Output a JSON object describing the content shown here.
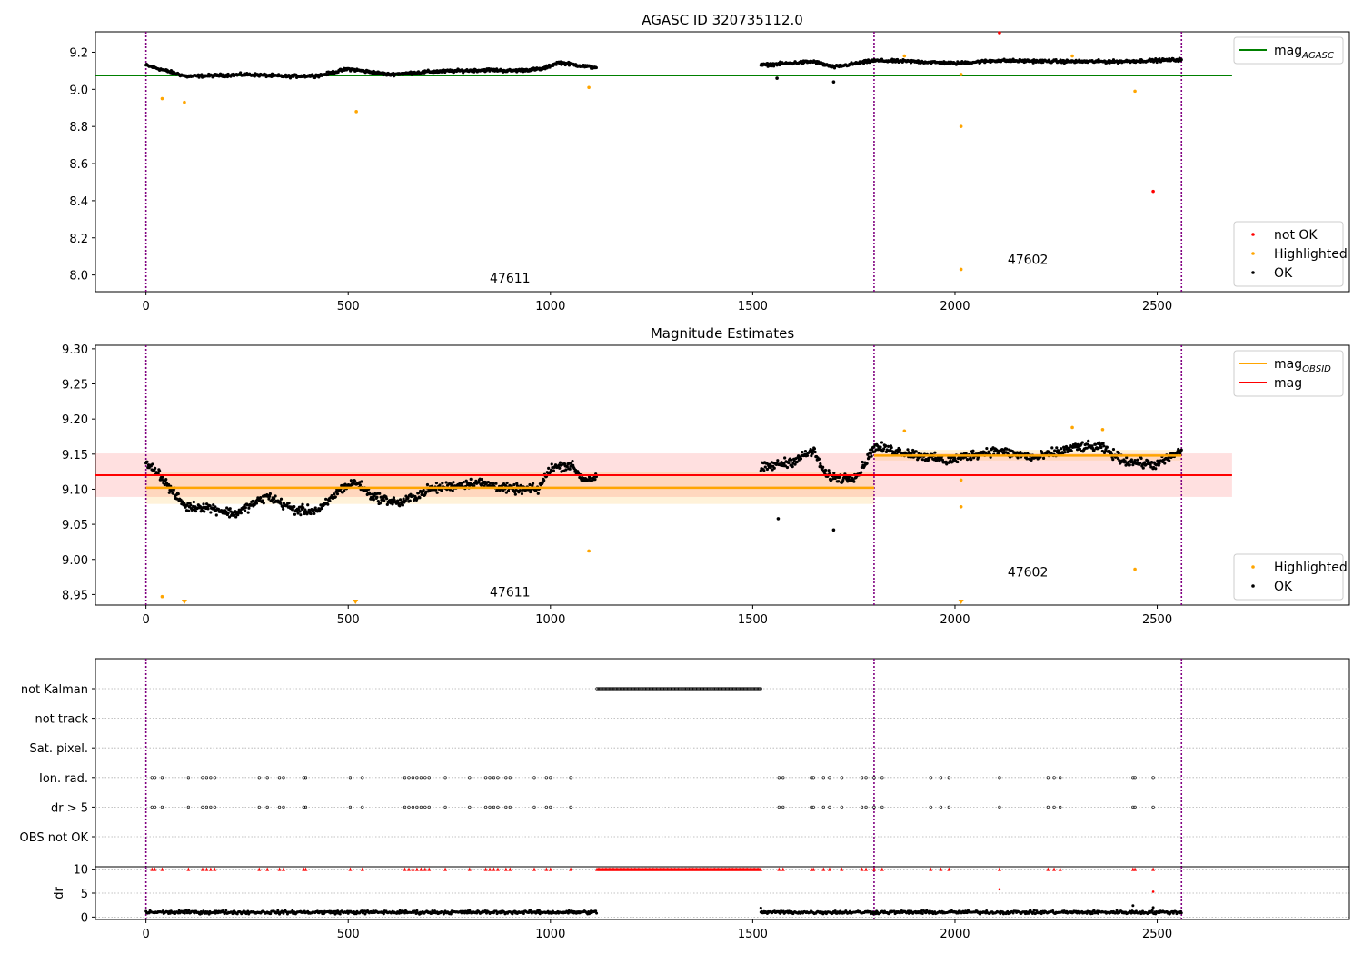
{
  "colors": {
    "ok": "#000000",
    "highlighted": "#ffa500",
    "not_ok": "#ff0000",
    "agasc_line": "#008000",
    "obsid_line": "#ffa500",
    "mag_line": "#ff0000",
    "obs_boundary": "#800080",
    "grid": "#b0b0b0"
  },
  "chart_data": [
    {
      "type": "scatter",
      "title": "AGASC ID 320735112.0",
      "xlabel": "",
      "ylabel": "",
      "xlim": [
        -125,
        2975
      ],
      "ylim": [
        7.91,
        9.31
      ],
      "x_ticks": [
        0,
        500,
        1000,
        1500,
        2000,
        2500
      ],
      "y_ticks": [
        8.0,
        8.2,
        8.4,
        8.6,
        8.8,
        9.0,
        9.2
      ],
      "grid": false,
      "obs_boundaries": [
        0,
        1800,
        2560
      ],
      "obsid_labels": [
        {
          "text": "47611",
          "x": 900,
          "y": 7.96
        },
        {
          "text": "47602",
          "x": 2180,
          "y": 8.06
        }
      ],
      "reference_lines": [
        {
          "name": "mag",
          "subscript": "AGASC",
          "y": 9.075,
          "x_range": [
            -125,
            2685
          ]
        }
      ],
      "ok_segments": [
        {
          "x_range": [
            0,
            1115
          ],
          "pattern": [
            [
              0,
              9.13
            ],
            [
              50,
              9.1
            ],
            [
              100,
              9.07
            ],
            [
              250,
              9.08
            ],
            [
              350,
              9.07
            ],
            [
              430,
              9.075
            ],
            [
              500,
              9.11
            ],
            [
              600,
              9.08
            ],
            [
              700,
              9.095
            ],
            [
              850,
              9.105
            ],
            [
              900,
              9.1
            ],
            [
              980,
              9.11
            ],
            [
              1020,
              9.145
            ],
            [
              1100,
              9.12
            ],
            [
              1115,
              9.12
            ]
          ]
        },
        {
          "x_range": [
            1520,
            2560
          ],
          "pattern": [
            [
              1520,
              9.13
            ],
            [
              1650,
              9.15
            ],
            [
              1700,
              9.12
            ],
            [
              1800,
              9.155
            ],
            [
              1900,
              9.15
            ],
            [
              2000,
              9.14
            ],
            [
              2100,
              9.155
            ],
            [
              2300,
              9.15
            ],
            [
              2400,
              9.15
            ],
            [
              2560,
              9.16
            ]
          ]
        }
      ],
      "ok_outliers": [
        [
          1560,
          9.06
        ],
        [
          1700,
          9.04
        ]
      ],
      "highlighted": [
        [
          40,
          8.95
        ],
        [
          95,
          8.93
        ],
        [
          520,
          8.88
        ],
        [
          1095,
          9.01
        ],
        [
          1875,
          9.18
        ],
        [
          2015,
          9.08
        ],
        [
          2015,
          8.8
        ],
        [
          2015,
          8.03
        ],
        [
          2290,
          9.18
        ],
        [
          2445,
          8.99
        ]
      ],
      "not_ok": [
        [
          2110,
          9.31
        ],
        [
          2490,
          8.45
        ]
      ],
      "legends": [
        {
          "position": "upper-right",
          "entries": [
            {
              "label": "mag",
              "subscript": "AGASC",
              "style": "line",
              "color": "#008000"
            }
          ]
        },
        {
          "position": "lower-right",
          "entries": [
            {
              "label": "not OK",
              "style": "dot",
              "color": "#ff0000"
            },
            {
              "label": "Highlighted",
              "style": "dot",
              "color": "#ffa500"
            },
            {
              "label": "OK",
              "style": "dot",
              "color": "#000000"
            }
          ]
        }
      ]
    },
    {
      "type": "scatter",
      "title": "Magnitude Estimates",
      "xlabel": "",
      "ylabel": "",
      "xlim": [
        -125,
        2975
      ],
      "ylim": [
        8.935,
        9.305
      ],
      "x_ticks": [
        0,
        500,
        1000,
        1500,
        2000,
        2500
      ],
      "y_ticks": [
        8.95,
        9.0,
        9.05,
        9.1,
        9.15,
        9.2,
        9.25,
        9.3
      ],
      "grid": false,
      "obs_boundaries": [
        0,
        1800,
        2560
      ],
      "obsid_labels": [
        {
          "text": "47611",
          "x": 900,
          "y": 8.947
        },
        {
          "text": "47602",
          "x": 2180,
          "y": 8.976
        }
      ],
      "mag_band": {
        "y_range": [
          9.089,
          9.151
        ],
        "x_range": [
          -125,
          2685
        ]
      },
      "mag_line": {
        "y": 9.12,
        "x_range": [
          -125,
          2685
        ]
      },
      "obsid_lines": [
        {
          "x_range": [
            0,
            1800
          ],
          "y": 9.102,
          "band": [
            9.079,
            9.125
          ]
        },
        {
          "x_range": [
            1800,
            2560
          ],
          "y": 9.148,
          "band": [
            9.141,
            9.156
          ]
        }
      ],
      "ok_segments": [
        {
          "x_range": [
            0,
            1115
          ],
          "pattern": [
            [
              0,
              9.135
            ],
            [
              30,
              9.125
            ],
            [
              60,
              9.1
            ],
            [
              100,
              9.075
            ],
            [
              150,
              9.075
            ],
            [
              220,
              9.065
            ],
            [
              300,
              9.09
            ],
            [
              370,
              9.07
            ],
            [
              430,
              9.07
            ],
            [
              480,
              9.1
            ],
            [
              520,
              9.11
            ],
            [
              560,
              9.09
            ],
            [
              630,
              9.08
            ],
            [
              700,
              9.1
            ],
            [
              820,
              9.11
            ],
            [
              900,
              9.1
            ],
            [
              970,
              9.1
            ],
            [
              1000,
              9.13
            ],
            [
              1050,
              9.135
            ],
            [
              1080,
              9.115
            ],
            [
              1115,
              9.115
            ]
          ]
        },
        {
          "x_range": [
            1520,
            2560
          ],
          "pattern": [
            [
              1520,
              9.13
            ],
            [
              1600,
              9.14
            ],
            [
              1650,
              9.155
            ],
            [
              1680,
              9.12
            ],
            [
              1720,
              9.115
            ],
            [
              1760,
              9.12
            ],
            [
              1800,
              9.16
            ],
            [
              1900,
              9.15
            ],
            [
              1980,
              9.14
            ],
            [
              2050,
              9.15
            ],
            [
              2100,
              9.155
            ],
            [
              2200,
              9.145
            ],
            [
              2300,
              9.16
            ],
            [
              2360,
              9.16
            ],
            [
              2420,
              9.14
            ],
            [
              2500,
              9.135
            ],
            [
              2560,
              9.155
            ]
          ]
        }
      ],
      "ok_outliers": [
        [
          1563,
          9.058
        ],
        [
          1700,
          9.042
        ]
      ],
      "highlighted": [
        [
          40,
          8.947
        ],
        [
          1095,
          9.012
        ],
        [
          1875,
          9.183
        ],
        [
          2015,
          9.113
        ],
        [
          2015,
          9.075
        ],
        [
          2290,
          9.188
        ],
        [
          2365,
          9.185
        ],
        [
          2445,
          8.986
        ]
      ],
      "clipped_markers": [
        95,
        518,
        2015
      ],
      "legends": [
        {
          "position": "upper-right",
          "entries": [
            {
              "label": "mag",
              "subscript": "OBSID",
              "style": "line",
              "color": "#ffa500"
            },
            {
              "label": "mag",
              "style": "line",
              "color": "#ff0000"
            }
          ]
        },
        {
          "position": "lower-right",
          "entries": [
            {
              "label": "Highlighted",
              "style": "dot",
              "color": "#ffa500"
            },
            {
              "label": "OK",
              "style": "dot",
              "color": "#000000"
            }
          ]
        }
      ]
    },
    {
      "type": "scatter",
      "title": "",
      "xlabel": "",
      "ylabel": "",
      "xlim": [
        -125,
        2975
      ],
      "categories": [
        "not Kalman",
        "not track",
        "Sat. pixel.",
        "Ion. rad.",
        "dr > 5",
        "OBS not OK"
      ],
      "grid": true,
      "obs_boundaries": [
        0,
        1800,
        2560
      ],
      "flag_runs": [
        {
          "category": "not Kalman",
          "x_range": [
            1115,
            1520
          ]
        }
      ],
      "flag_points": [
        {
          "category": "Ion. rad.",
          "x": [
            15,
            22,
            40,
            105,
            140,
            150,
            160,
            170,
            280,
            300,
            330,
            340,
            390,
            395,
            505,
            535,
            640,
            650,
            660,
            670,
            680,
            690,
            700,
            740,
            800,
            840,
            850,
            860,
            870,
            890,
            900,
            960,
            990,
            1000,
            1050,
            1565,
            1575,
            1645,
            1650,
            1675,
            1690,
            1720,
            1770,
            1780,
            1800,
            1820,
            1940,
            1965,
            1985,
            2110,
            2230,
            2245,
            2260,
            2440,
            2445,
            2490
          ]
        },
        {
          "category": "dr > 5",
          "x": [
            15,
            22,
            40,
            105,
            140,
            150,
            160,
            170,
            280,
            300,
            330,
            340,
            390,
            395,
            505,
            535,
            640,
            650,
            660,
            670,
            680,
            690,
            700,
            740,
            800,
            840,
            850,
            860,
            870,
            890,
            900,
            960,
            990,
            1000,
            1050,
            1565,
            1575,
            1645,
            1650,
            1675,
            1690,
            1720,
            1770,
            1780,
            1800,
            1820,
            1940,
            1965,
            1985,
            2110,
            2230,
            2245,
            2260,
            2440,
            2445,
            2490
          ]
        }
      ]
    },
    {
      "type": "scatter",
      "title": "",
      "xlabel": "",
      "ylabel": "dr",
      "xlim": [
        -125,
        2975
      ],
      "ylim": [
        -0.5,
        10.5
      ],
      "x_ticks": [
        0,
        500,
        1000,
        1500,
        2000,
        2500
      ],
      "y_ticks": [
        0,
        5,
        10
      ],
      "grid": true,
      "obs_boundaries": [
        0,
        1800,
        2560
      ],
      "ok_segments": [
        {
          "x_range": [
            0,
            1115
          ],
          "mean": 1.0
        },
        {
          "x_range": [
            1520,
            2560
          ],
          "mean": 1.0
        }
      ],
      "ok_outliers": [
        [
          1520,
          1.9
        ],
        [
          2440,
          2.4
        ],
        [
          2490,
          2.0
        ]
      ],
      "not_ok_small": [
        [
          2110,
          5.8
        ],
        [
          2490,
          5.3
        ]
      ],
      "clipped_markers": {
        "y": 10,
        "x": [
          15,
          22,
          40,
          105,
          140,
          150,
          160,
          170,
          280,
          300,
          330,
          340,
          390,
          395,
          505,
          535,
          640,
          650,
          660,
          670,
          680,
          690,
          700,
          740,
          800,
          840,
          850,
          860,
          870,
          890,
          900,
          960,
          990,
          1000,
          1050,
          1565,
          1575,
          1645,
          1650,
          1675,
          1690,
          1720,
          1770,
          1780,
          1800,
          1820,
          1940,
          1965,
          1985,
          2110,
          2230,
          2245,
          2260,
          2440,
          2445,
          2490
        ],
        "x_range": [
          1115,
          1520
        ]
      }
    }
  ]
}
